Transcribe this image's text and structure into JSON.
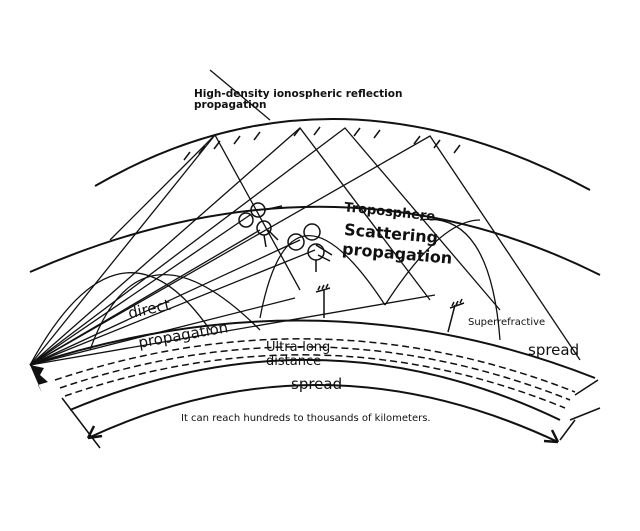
{
  "labels": {
    "ionospheric": "High-density ionospheric reflection propagation",
    "troposphere": "Troposphere",
    "scattering1": "Scattering",
    "scattering2": "propagation",
    "direct1": "direct",
    "direct2": "propagation",
    "ultra1": "Ultra-long",
    "ultra2": "distance",
    "spread_center": "spread",
    "superrefractive": "Superrefractive",
    "spread_right": "spread",
    "distance_note": "It can reach hundreds to thousands of kilometers."
  }
}
